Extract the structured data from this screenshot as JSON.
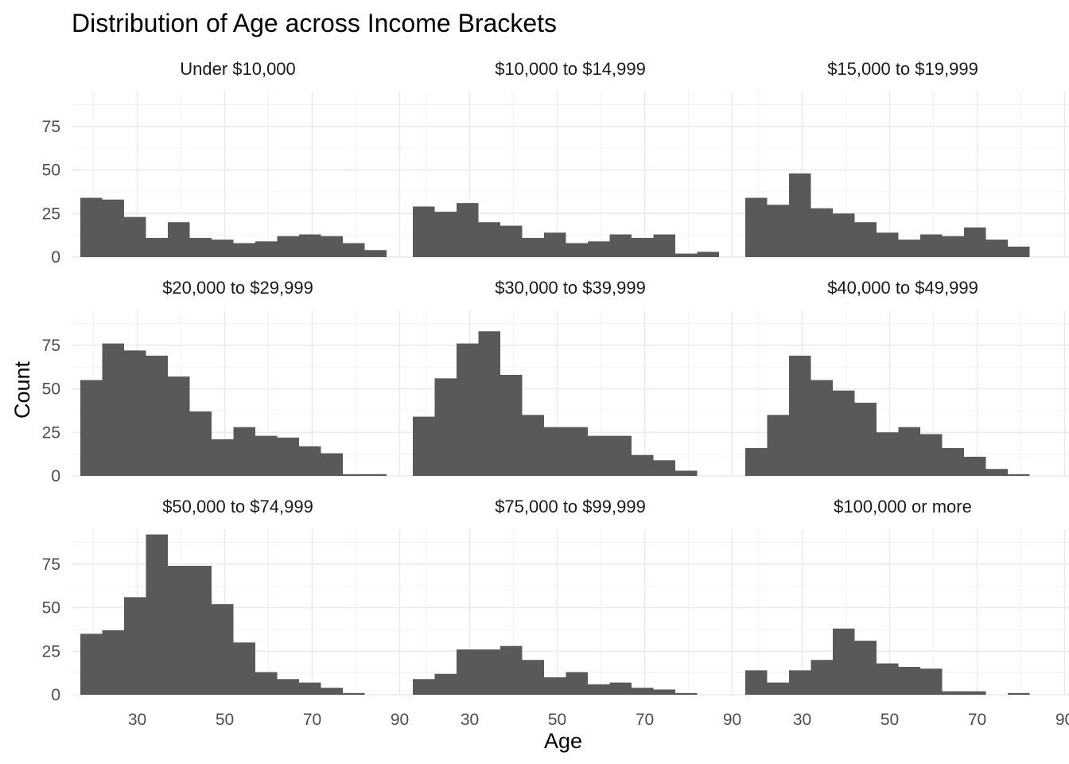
{
  "chart_data": {
    "type": "bar",
    "title": "Distribution of Age across Income Brackets",
    "xlabel": "Age",
    "ylabel": "Count",
    "xlim": [
      15,
      91
    ],
    "ylim": [
      0,
      95
    ],
    "x_ticks": [
      30,
      50,
      70,
      90
    ],
    "y_ticks": [
      0,
      25,
      50,
      75
    ],
    "bin_width": 5,
    "grid": true,
    "facet_layout": "3x3",
    "panels": [
      {
        "label": "Under $10,000",
        "bin_starts": [
          17,
          22,
          27,
          32,
          37,
          42,
          47,
          52,
          57,
          62,
          67,
          72,
          77,
          82
        ],
        "values": [
          34,
          33,
          23,
          11,
          20,
          11,
          10,
          8,
          9,
          12,
          13,
          12,
          8,
          4
        ]
      },
      {
        "label": "$10,000 to $14,999",
        "bin_starts": [
          17,
          22,
          27,
          32,
          37,
          42,
          47,
          52,
          57,
          62,
          67,
          72,
          77,
          82
        ],
        "values": [
          29,
          26,
          31,
          20,
          18,
          11,
          14,
          8,
          9,
          13,
          11,
          13,
          2,
          3
        ]
      },
      {
        "label": "$15,000 to $19,999",
        "bin_starts": [
          17,
          22,
          27,
          32,
          37,
          42,
          47,
          52,
          57,
          62,
          67,
          72,
          77
        ],
        "values": [
          34,
          30,
          48,
          28,
          25,
          20,
          14,
          10,
          13,
          12,
          17,
          10,
          6
        ]
      },
      {
        "label": "$20,000 to $29,999",
        "bin_starts": [
          17,
          22,
          27,
          32,
          37,
          42,
          47,
          52,
          57,
          62,
          67,
          72,
          77,
          82
        ],
        "values": [
          55,
          76,
          72,
          69,
          57,
          37,
          21,
          28,
          23,
          22,
          17,
          13,
          1,
          1
        ]
      },
      {
        "label": "$30,000 to $39,999",
        "bin_starts": [
          17,
          22,
          27,
          32,
          37,
          42,
          47,
          52,
          57,
          62,
          67,
          72,
          77
        ],
        "values": [
          34,
          56,
          76,
          83,
          58,
          35,
          28,
          28,
          23,
          23,
          12,
          9,
          3
        ]
      },
      {
        "label": "$40,000 to $49,999",
        "bin_starts": [
          17,
          22,
          27,
          32,
          37,
          42,
          47,
          52,
          57,
          62,
          67,
          72,
          77
        ],
        "values": [
          16,
          35,
          69,
          55,
          49,
          42,
          25,
          28,
          24,
          16,
          11,
          4,
          1
        ]
      },
      {
        "label": "$50,000 to $74,999",
        "bin_starts": [
          17,
          22,
          27,
          32,
          37,
          42,
          47,
          52,
          57,
          62,
          67,
          72,
          77
        ],
        "values": [
          35,
          37,
          56,
          92,
          74,
          74,
          52,
          30,
          13,
          9,
          7,
          4,
          1
        ]
      },
      {
        "label": "$75,000 to $99,999",
        "bin_starts": [
          17,
          22,
          27,
          32,
          37,
          42,
          47,
          52,
          57,
          62,
          67,
          72,
          77
        ],
        "values": [
          9,
          12,
          26,
          26,
          28,
          20,
          10,
          13,
          6,
          7,
          4,
          3,
          1
        ]
      },
      {
        "label": "$100,000 or more",
        "bin_starts": [
          17,
          22,
          27,
          32,
          37,
          42,
          47,
          52,
          57,
          62,
          67,
          72,
          77
        ],
        "values": [
          14,
          7,
          14,
          20,
          38,
          31,
          18,
          16,
          15,
          2,
          2,
          0,
          1
        ]
      }
    ]
  }
}
